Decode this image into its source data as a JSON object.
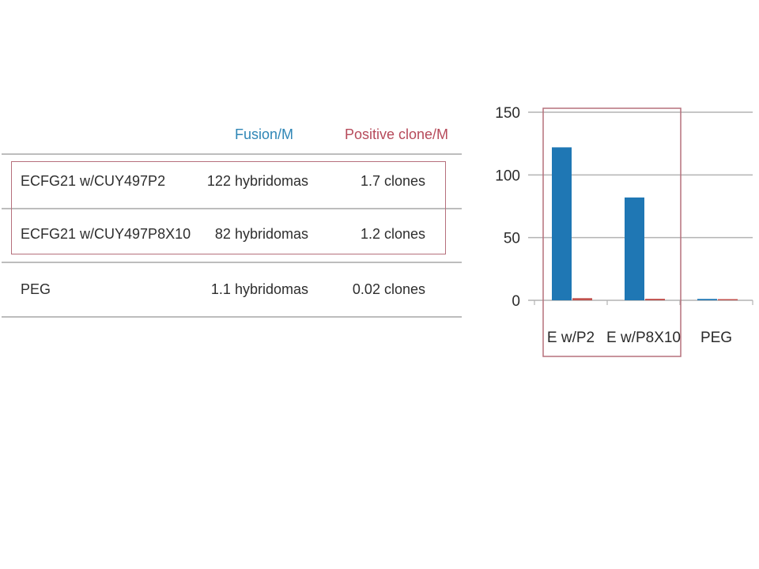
{
  "table": {
    "headers": {
      "fusion": "Fusion/M",
      "positive": "Positive clone/M"
    },
    "rows": [
      {
        "name": "ECFG21 w/CUY497P2",
        "fusion": "122  hybridomas",
        "positive": "1.7  clones"
      },
      {
        "name": "ECFG21 w/CUY497P8X10",
        "fusion": "82  hybridomas",
        "positive": "1.2  clones"
      },
      {
        "name": "PEG",
        "fusion": "1.1 hybridomas",
        "positive": "0.02 clones"
      }
    ]
  },
  "chart_data": {
    "type": "bar",
    "categories": [
      "E w/P2",
      "E w/P8X10",
      "PEG"
    ],
    "series": [
      {
        "values": [
          122,
          82,
          1.1
        ],
        "color": "#1f77b4"
      },
      {
        "values": [
          1.7,
          1.2,
          0.02
        ],
        "color": "#c0504d"
      }
    ],
    "yticks": [
      "150",
      "100",
      "50",
      "0"
    ],
    "ylim": [
      0,
      150
    ],
    "grid": true,
    "highlight_color": "#b6707c"
  }
}
